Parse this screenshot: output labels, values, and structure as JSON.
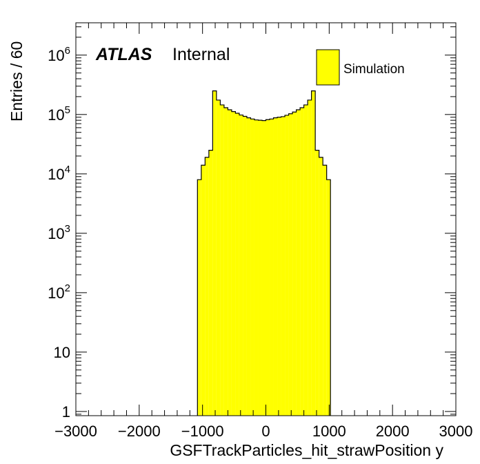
{
  "chart_data": {
    "type": "histogram",
    "xlabel": "GSFTrackParticles_hit_strawPosition y",
    "ylabel": "Entries / 60",
    "xlim": [
      -3000,
      3000
    ],
    "ylim": [
      0.85,
      3500000
    ],
    "y_scale": "log",
    "bin_width": 60,
    "x_ticks": [
      -3000,
      -2000,
      -1000,
      0,
      1000,
      2000,
      3000
    ],
    "x_tick_labels": [
      "−3000",
      "−2000",
      "−1000",
      "0",
      "1000",
      "2000",
      "3000"
    ],
    "y_ticks": [
      {
        "value": 1,
        "base": "1",
        "exp": ""
      },
      {
        "value": 10,
        "base": "10",
        "exp": ""
      },
      {
        "value": 100,
        "base": "10",
        "exp": "2"
      },
      {
        "value": 1000,
        "base": "10",
        "exp": "3"
      },
      {
        "value": 10000,
        "base": "10",
        "exp": "4"
      },
      {
        "value": 100000,
        "base": "10",
        "exp": "5"
      },
      {
        "value": 1000000,
        "base": "10",
        "exp": "6"
      }
    ],
    "fill_color": "#ffff00",
    "line_color": "#000000",
    "bins": [
      {
        "x": -1080,
        "y": 8000
      },
      {
        "x": -1020,
        "y": 14000
      },
      {
        "x": -960,
        "y": 19000
      },
      {
        "x": -900,
        "y": 25000
      },
      {
        "x": -840,
        "y": 250000
      },
      {
        "x": -780,
        "y": 175000
      },
      {
        "x": -720,
        "y": 145000
      },
      {
        "x": -660,
        "y": 130000
      },
      {
        "x": -600,
        "y": 120000
      },
      {
        "x": -540,
        "y": 112000
      },
      {
        "x": -480,
        "y": 105000
      },
      {
        "x": -420,
        "y": 98000
      },
      {
        "x": -360,
        "y": 93000
      },
      {
        "x": -300,
        "y": 88000
      },
      {
        "x": -240,
        "y": 84000
      },
      {
        "x": -180,
        "y": 81000
      },
      {
        "x": -120,
        "y": 80000
      },
      {
        "x": -60,
        "y": 79000
      },
      {
        "x": 0,
        "y": 82000
      },
      {
        "x": 60,
        "y": 84000
      },
      {
        "x": 120,
        "y": 88000
      },
      {
        "x": 180,
        "y": 90000
      },
      {
        "x": 240,
        "y": 92000
      },
      {
        "x": 300,
        "y": 97000
      },
      {
        "x": 360,
        "y": 103000
      },
      {
        "x": 420,
        "y": 110000
      },
      {
        "x": 480,
        "y": 120000
      },
      {
        "x": 540,
        "y": 130000
      },
      {
        "x": 600,
        "y": 145000
      },
      {
        "x": 660,
        "y": 175000
      },
      {
        "x": 720,
        "y": 250000
      },
      {
        "x": 780,
        "y": 25000
      },
      {
        "x": 840,
        "y": 19000
      },
      {
        "x": 900,
        "y": 14000
      },
      {
        "x": 960,
        "y": 8000
      }
    ],
    "legend": {
      "placement": "top-right",
      "entries": [
        {
          "label": "Simulation",
          "color": "#ffff00"
        }
      ]
    },
    "annotation": {
      "bold_text": "ATLAS",
      "text": "Internal",
      "placement": "top-left"
    }
  }
}
